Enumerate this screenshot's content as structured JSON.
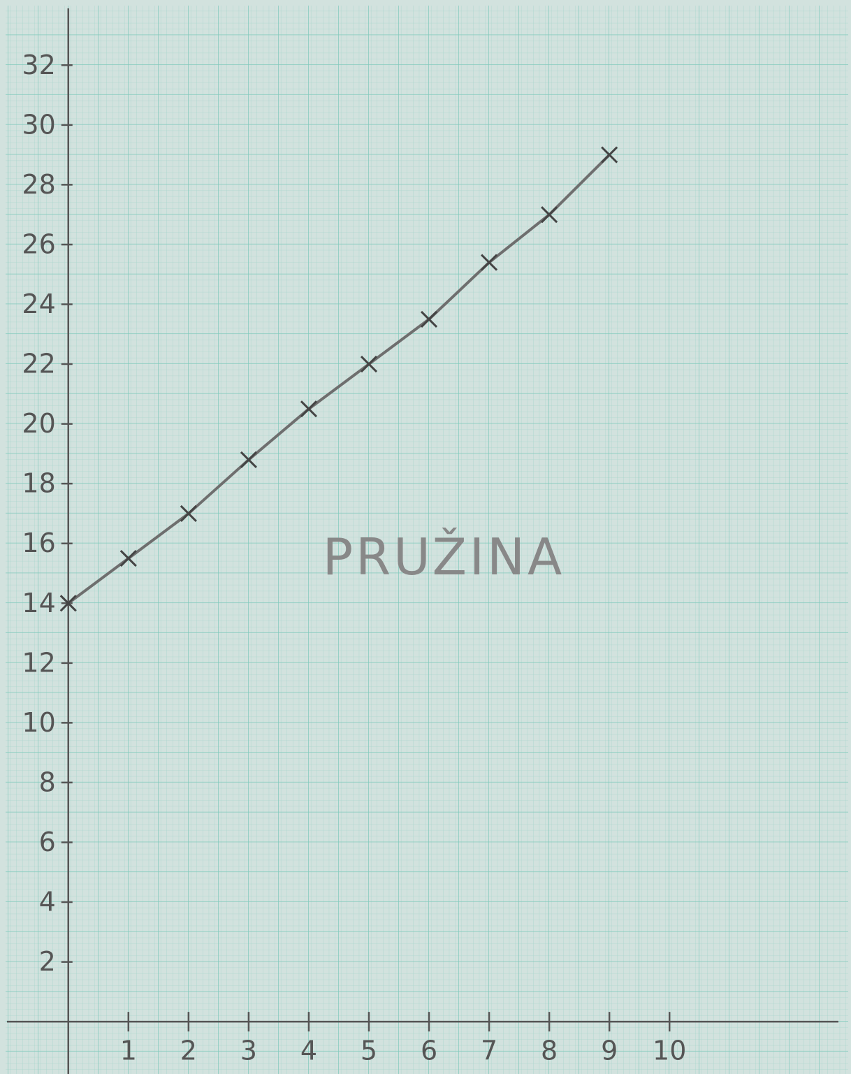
{
  "chart_data": {
    "type": "line",
    "title": "PRUŽINA",
    "x": [
      0,
      1,
      2,
      3,
      4,
      5,
      6,
      7,
      8,
      9
    ],
    "series": [
      {
        "color": "#6e6e6e",
        "values": [
          14,
          15.5,
          17,
          18.8,
          20.5,
          22,
          23.5,
          25.4,
          27,
          29
        ]
      }
    ],
    "xlim": [
      -1.02,
      12.81
    ],
    "ylim": [
      -1.75,
      33.9
    ],
    "xticks": [
      1,
      2,
      3,
      4,
      5,
      6,
      7,
      8,
      9,
      10
    ],
    "yticks": [
      2,
      4,
      6,
      8,
      10,
      12,
      14,
      16,
      18,
      20,
      22,
      24,
      26,
      28,
      30,
      32
    ],
    "grid": true
  }
}
